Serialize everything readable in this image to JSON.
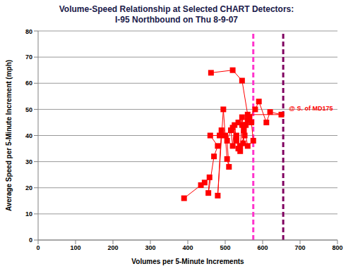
{
  "chart_data": {
    "type": "scatter",
    "title": "Volume-Speed Relationship at Selected CHART Detectors:",
    "subtitle": "I-95 Northbound on Thu 8-9-07",
    "x_label": "Volumes per 5-Minute Increments",
    "y_label": "Average Speed per 5-Minute Increment (mph)",
    "x": [
      390,
      435,
      445,
      458,
      455,
      470,
      480,
      460,
      485,
      490,
      480,
      495,
      500,
      505,
      510,
      505,
      515,
      520,
      525,
      530,
      535,
      540,
      545,
      550,
      548,
      555,
      560,
      552,
      540,
      530,
      520,
      535,
      545,
      565,
      570,
      575,
      560,
      550,
      580,
      590,
      610,
      620,
      650,
      560,
      545,
      520,
      462
    ],
    "values": [
      16,
      21,
      22,
      24,
      18,
      32,
      36,
      40,
      40,
      42,
      17,
      50,
      40,
      31,
      28,
      38,
      42,
      36,
      44,
      38,
      35,
      34,
      47,
      42,
      37,
      44,
      46,
      40,
      36,
      40,
      43,
      45,
      44,
      47,
      45,
      38,
      36,
      44,
      50,
      53,
      45,
      49,
      48,
      48,
      61,
      65,
      64
    ],
    "color": "#ff0000",
    "marker": "square",
    "line_style": "solid",
    "xlim": [
      0,
      800
    ],
    "xticks": [
      0,
      100,
      200,
      300,
      400,
      500,
      600,
      700,
      800
    ],
    "ylim": [
      0,
      80
    ],
    "yticks": [
      0,
      10,
      20,
      30,
      40,
      50,
      60,
      70,
      80
    ],
    "grid": true,
    "reference_lines": [
      {
        "x": 575,
        "color": "#ff33cc"
      },
      {
        "x": 655,
        "color": "#800060",
        "label": "@ S. of MD175"
      }
    ]
  }
}
